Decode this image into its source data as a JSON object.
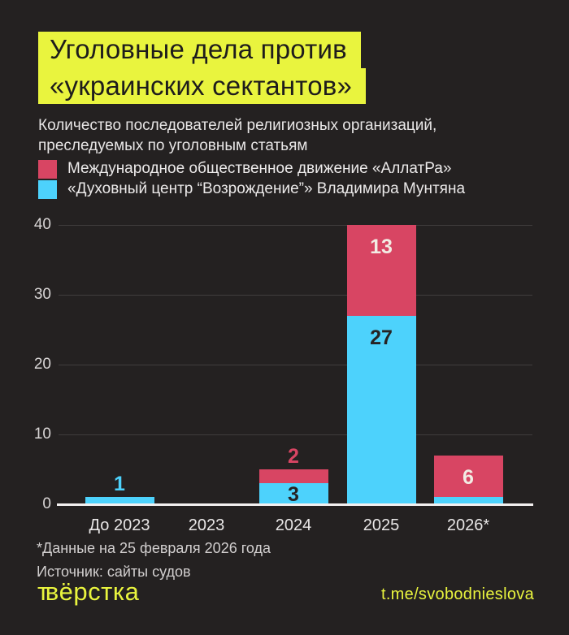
{
  "title": {
    "line1": "Уголовные дела против",
    "line2": "«украинских сектантов»"
  },
  "subtitle": {
    "line1": "Количество последователей религиозных организаций,",
    "line2": "преследуемых по уголовным статьям"
  },
  "legend": {
    "items": [
      {
        "label": "Международное общественное движение «АллатРа»",
        "color": "#d84563"
      },
      {
        "label": "«Духовный центр “Возрождение”» Владимира Мунтяна",
        "color": "#4dd2fc"
      }
    ]
  },
  "chart_data": {
    "type": "bar",
    "subtype": "stacked-vertical",
    "categories": [
      "До 2023",
      "2023",
      "2024",
      "2025",
      "2026*"
    ],
    "series": [
      {
        "name": "«Духовный центр “Возрождение”» Владимира Мунтяна",
        "color_key": "blue",
        "values": [
          1,
          0,
          3,
          27,
          1
        ]
      },
      {
        "name": "Международное общественное движение «АллатРа»",
        "color_key": "red",
        "values": [
          0,
          0,
          2,
          13,
          6
        ]
      }
    ],
    "ylim": [
      0,
      40
    ],
    "yticks": [
      0,
      10,
      20,
      30,
      40
    ],
    "grid": true,
    "legend_position": "top-left",
    "value_labels": [
      {
        "category_index": 0,
        "series": "blue",
        "text": "1",
        "placement": "above",
        "style": "blue"
      },
      {
        "category_index": 2,
        "series": "red",
        "text": "2",
        "placement": "above",
        "style": "red"
      },
      {
        "category_index": 2,
        "series": "blue",
        "text": "3",
        "placement": "inside-center",
        "style": "dark"
      },
      {
        "category_index": 3,
        "series": "red",
        "text": "13",
        "placement": "inside-top",
        "style": "light"
      },
      {
        "category_index": 3,
        "series": "blue",
        "text": "27",
        "placement": "inside-top",
        "style": "dark"
      },
      {
        "category_index": 4,
        "series": "red",
        "text": "6",
        "placement": "inside-center",
        "style": "light"
      }
    ]
  },
  "footnotes": {
    "line1": "*Данные на 25 февраля 2026 года",
    "line2": "Источник: сайты судов"
  },
  "footer": {
    "logo": "твёрстка",
    "telegram": "t.me/svobodnieslova"
  },
  "colors": {
    "background": "#242121",
    "accent_yellow": "#e9f43e",
    "red": "#d84563",
    "blue": "#4dd2fc",
    "title_text": "#1e1c1c",
    "label_dark": "#262324",
    "label_light": "#f2ece4"
  }
}
